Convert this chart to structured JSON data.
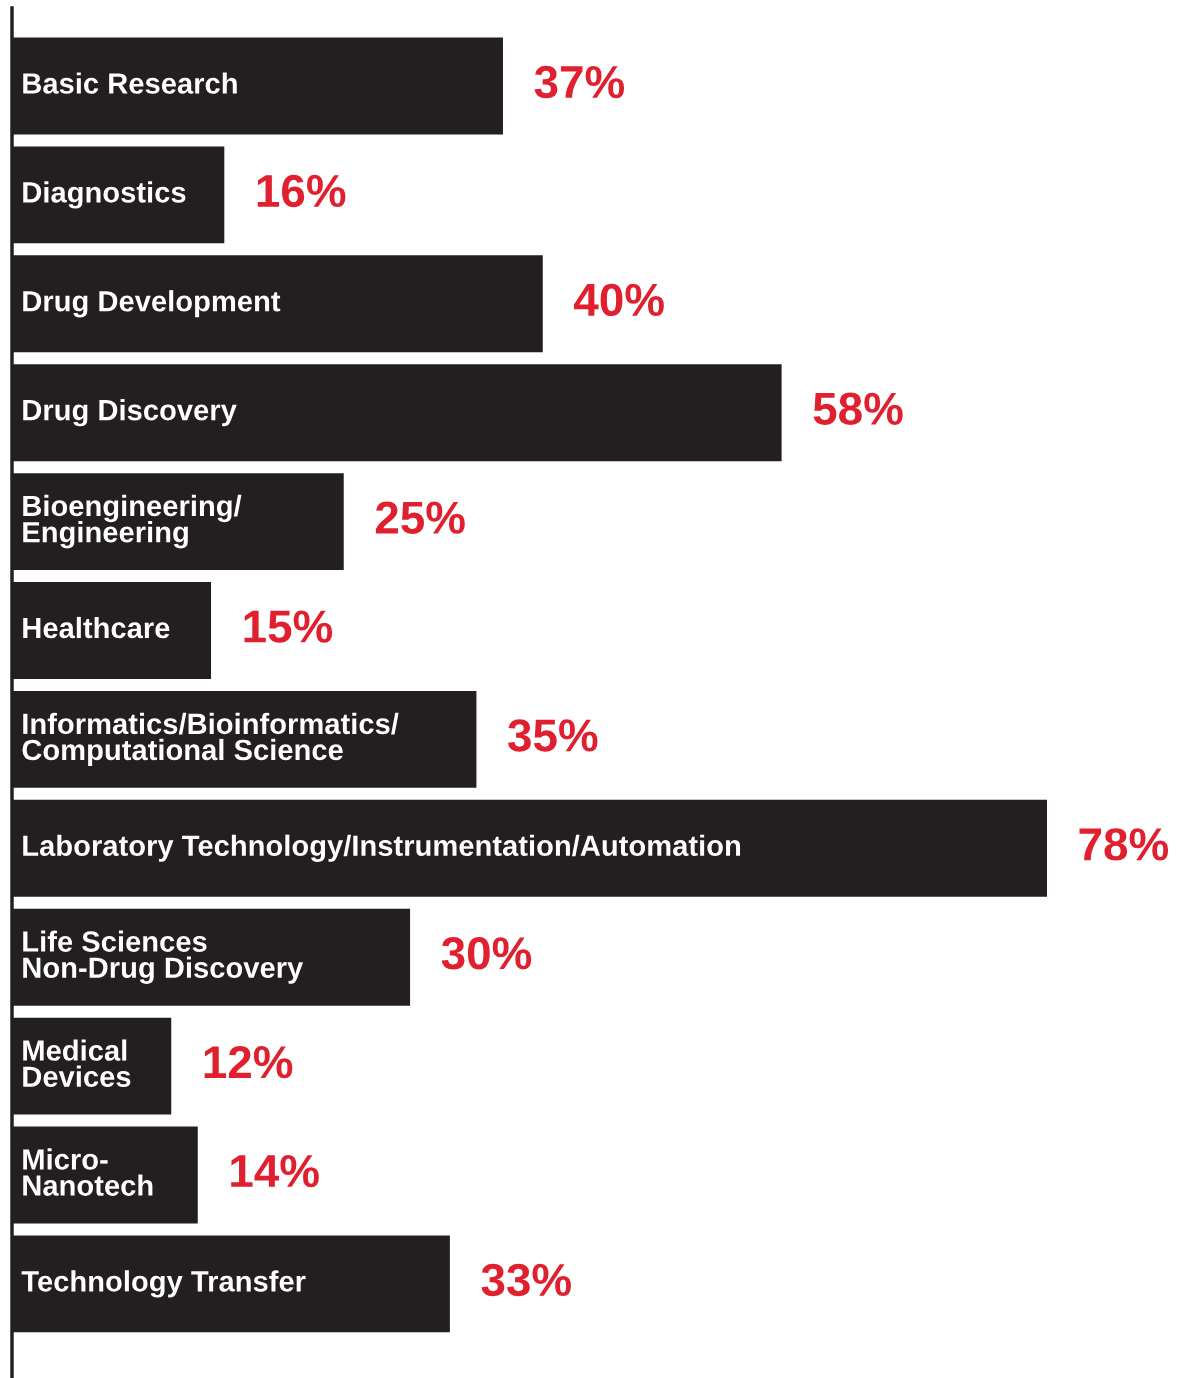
{
  "chart_data": {
    "type": "bar",
    "orientation": "horizontal",
    "categories": [
      "Basic Research",
      "Diagnostics",
      "Drug Development",
      "Drug Discovery",
      "Bioengineering/\nEngineering",
      "Healthcare",
      "Informatics/Bioinformatics/\nComputational Science",
      "Laboratory Technology/Instrumentation/Automation",
      "Life Sciences\nNon-Drug Discovery",
      "Medical\nDevices",
      "Micro-\nNanotech",
      "Technology Transfer"
    ],
    "values": [
      37,
      16,
      40,
      58,
      25,
      15,
      35,
      78,
      30,
      12,
      14,
      33
    ],
    "value_labels": [
      "37%",
      "16%",
      "40%",
      "58%",
      "25%",
      "15%",
      "35%",
      "78%",
      "30%",
      "12%",
      "14%",
      "33%"
    ],
    "color": "#231f20"
  }
}
